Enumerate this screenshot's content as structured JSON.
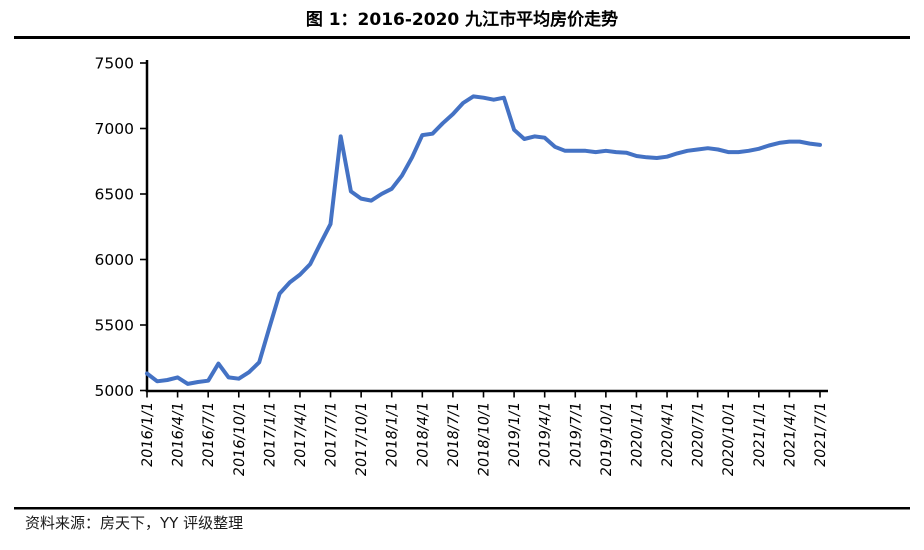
{
  "title": "图 1：2016-2020 九江市平均房价走势",
  "source_note": "资料来源：房天下，YY 评级整理",
  "colors": {
    "line": "#4472C4",
    "axis": "#000000",
    "rule": "#000000",
    "text": "#000000"
  },
  "chart_data": {
    "type": "line",
    "title": "图 1：2016-2020 九江市平均房价走势",
    "xlabel": "",
    "ylabel": "",
    "x_start": "2016/1",
    "x_freq": "monthly",
    "ylim": [
      5000,
      7500
    ],
    "y_ticks": [
      5000,
      5500,
      6000,
      6500,
      7000,
      7500
    ],
    "grid": false,
    "legend": false,
    "x_tick_labels": [
      "2016/1/1",
      "2016/4/1",
      "2016/7/1",
      "2016/10/1",
      "2017/1/1",
      "2017/4/1",
      "2017/7/1",
      "2017/10/1",
      "2018/1/1",
      "2018/4/1",
      "2018/7/1",
      "2018/10/1",
      "2019/1/1",
      "2019/4/1",
      "2019/7/1",
      "2019/10/1",
      "2020/1/1",
      "2020/4/1",
      "2020/7/1",
      "2020/10/1",
      "2021/1/1",
      "2021/4/1",
      "2021/7/1"
    ],
    "series": [
      {
        "name": "平均房价",
        "values": [
          5130,
          5070,
          5080,
          5100,
          5050,
          5065,
          5075,
          5205,
          5100,
          5090,
          5140,
          5215,
          5480,
          5740,
          5825,
          5885,
          5965,
          6120,
          6270,
          6940,
          6520,
          6465,
          6450,
          6500,
          6540,
          6640,
          6780,
          6950,
          6960,
          7040,
          7110,
          7195,
          7245,
          7235,
          7220,
          7235,
          6990,
          6920,
          6940,
          6930,
          6860,
          6830,
          6830,
          6830,
          6820,
          6830,
          6820,
          6815,
          6790,
          6780,
          6775,
          6785,
          6810,
          6830,
          6840,
          6850,
          6840,
          6820,
          6820,
          6830,
          6845,
          6870,
          6890,
          6900,
          6900,
          6885,
          6875
        ]
      }
    ]
  }
}
